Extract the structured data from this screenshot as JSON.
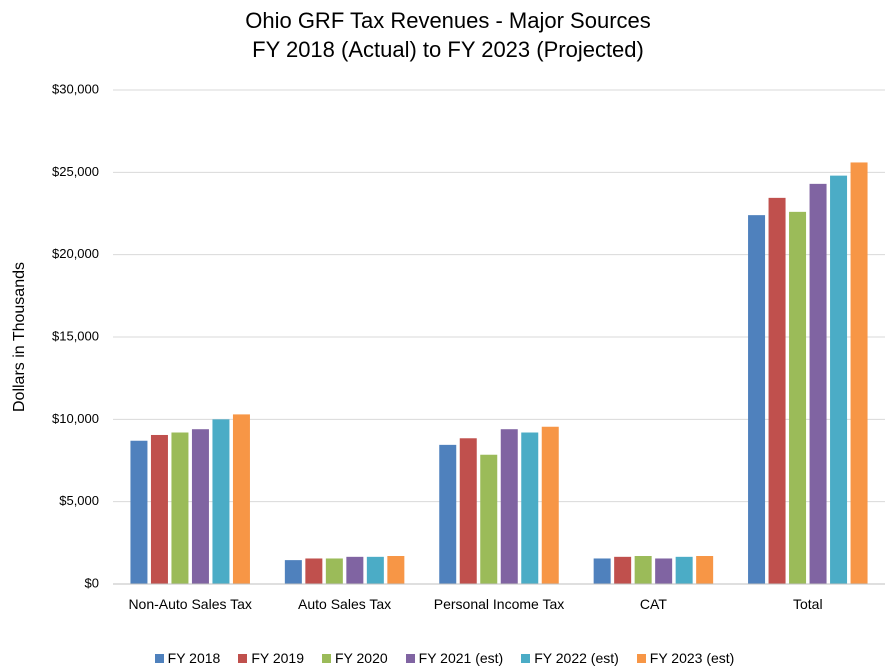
{
  "chart_data": {
    "type": "bar",
    "title": "Ohio GRF Tax Revenues - Major Sources",
    "subtitle": "FY 2018 (Actual) to FY 2023 (Projected)",
    "y_label": "Dollars in Thousands",
    "categories": [
      "Non-Auto Sales Tax",
      "Auto Sales Tax",
      "Personal Income Tax",
      "CAT",
      "Total"
    ],
    "series": [
      {
        "name": "FY 2018",
        "color": "#4f81bd",
        "values": [
          8700,
          1450,
          8450,
          1550,
          22400
        ]
      },
      {
        "name": "FY 2019",
        "color": "#c0504d",
        "values": [
          9050,
          1550,
          8850,
          1650,
          23450
        ]
      },
      {
        "name": "FY 2020",
        "color": "#9bbb59",
        "values": [
          9200,
          1550,
          7850,
          1700,
          22600
        ]
      },
      {
        "name": "FY 2021 (est)",
        "color": "#8064a2",
        "values": [
          9400,
          1650,
          9400,
          1550,
          24300
        ]
      },
      {
        "name": "FY 2022 (est)",
        "color": "#4bacc6",
        "values": [
          10000,
          1650,
          9200,
          1650,
          24800
        ]
      },
      {
        "name": "FY 2023 (est)",
        "color": "#f79646",
        "values": [
          10300,
          1700,
          9550,
          1700,
          25600
        ]
      }
    ],
    "ylim": [
      0,
      30000
    ],
    "yticks": [
      {
        "value": 0,
        "label": "$0"
      },
      {
        "value": 5000,
        "label": "$5,000"
      },
      {
        "value": 10000,
        "label": "$10,000"
      },
      {
        "value": 15000,
        "label": "$15,000"
      },
      {
        "value": 20000,
        "label": "$20,000"
      },
      {
        "value": 25000,
        "label": "$25,000"
      },
      {
        "value": 30000,
        "label": "$30,000"
      }
    ],
    "grid": true,
    "legend": "bottom"
  }
}
